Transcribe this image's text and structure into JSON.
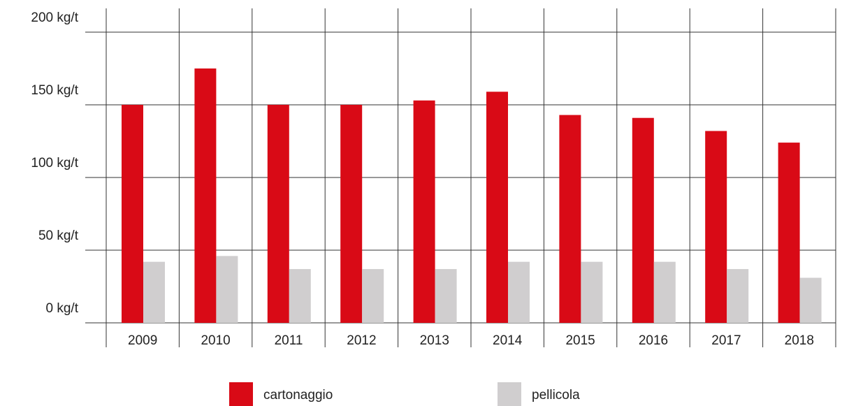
{
  "chart_data": {
    "type": "bar",
    "categories": [
      "2009",
      "2010",
      "2011",
      "2012",
      "2013",
      "2014",
      "2015",
      "2016",
      "2017",
      "2018"
    ],
    "series": [
      {
        "name": "cartonaggio",
        "color": "#d90a16",
        "values": [
          150,
          175,
          150,
          150,
          153,
          159,
          143,
          141,
          132,
          124
        ]
      },
      {
        "name": "pellicola",
        "color": "#d0cecf",
        "values": [
          42,
          46,
          37,
          37,
          37,
          42,
          42,
          42,
          37,
          31
        ]
      }
    ],
    "ylim": [
      0,
      200
    ],
    "yticks": [
      {
        "value": 0,
        "label": "0 kg/t"
      },
      {
        "value": 50,
        "label": "50 kg/t"
      },
      {
        "value": 100,
        "label": "100 kg/t"
      },
      {
        "value": 150,
        "label": "150 kg/t"
      },
      {
        "value": 200,
        "label": "200 kg/t"
      }
    ],
    "grid": true
  }
}
